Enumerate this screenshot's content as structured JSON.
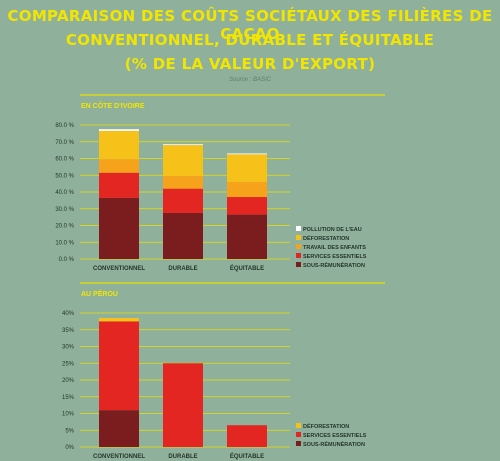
{
  "header": {
    "title_line1": "COMPARAISON DES COÛTS SOCIÉTAUX DES FILIÈRES DE CACAO",
    "title_line2": "CONVENTIONNEL, DURABLE ET ÉQUITABLE",
    "title_line3": "(% DE LA VALEUR D'EXPORT)",
    "source": "Source : BASIC"
  },
  "colors": {
    "background": "#8fb19b",
    "title": "#f2e600",
    "line": "#e8e000"
  },
  "chart_data": [
    {
      "type": "bar",
      "stacked": true,
      "title": "EN CÔTE D'IVOIRE",
      "categories": [
        "CONVENTIONNEL",
        "DURABLE",
        "ÉQUITABLE"
      ],
      "yticks": [
        "0.0 %",
        "10.0 %",
        "20.0 %",
        "30.0 %",
        "40.0 %",
        "50.0 %",
        "60.0 %",
        "70.0 %",
        "80.0 %"
      ],
      "ylim": [
        0,
        80
      ],
      "legend_position": "right",
      "series": [
        {
          "name": "SOUS-RÉMUNÉRATION",
          "color": "#7b1c1f",
          "values": [
            36.5,
            27.5,
            26.5
          ]
        },
        {
          "name": "SERVICES ESSENTIELS",
          "color": "#e32622",
          "values": [
            15,
            14.5,
            10.5
          ]
        },
        {
          "name": "TRAVAIL DES ENFANTS",
          "color": "#f6a21a",
          "values": [
            8,
            7.5,
            9
          ]
        },
        {
          "name": "DÉFORESTATION",
          "color": "#f6c21a",
          "values": [
            17,
            18.5,
            16.5
          ]
        },
        {
          "name": "POLLUTION DE L'EAU",
          "color": "#ffffff",
          "values": [
            1,
            0.5,
            0.5
          ]
        }
      ]
    },
    {
      "type": "bar",
      "stacked": true,
      "title": "AU PÉROU",
      "categories": [
        "CONVENTIONNEL",
        "DURABLE",
        "ÉQUITABLE"
      ],
      "yticks": [
        "0%",
        "5%",
        "10%",
        "15%",
        "20%",
        "25%",
        "30%",
        "35%",
        "40%"
      ],
      "ylim": [
        0,
        40
      ],
      "legend_position": "right",
      "series": [
        {
          "name": "SOUS-RÉMUNÉRATION",
          "color": "#7b1c1f",
          "values": [
            11,
            0,
            0
          ]
        },
        {
          "name": "SERVICES ESSENTIELS",
          "color": "#e32622",
          "values": [
            26.5,
            25,
            6.5
          ]
        },
        {
          "name": "DÉFORESTATION",
          "color": "#f6c21a",
          "values": [
            1,
            0,
            0
          ]
        }
      ]
    }
  ]
}
